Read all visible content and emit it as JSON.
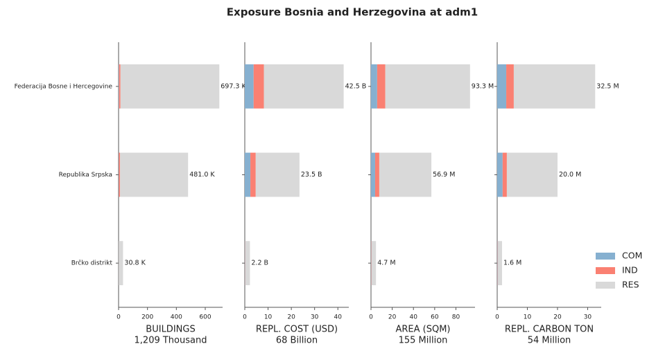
{
  "title": "Exposure Bosnia and Herzegovina at adm1",
  "chart_data": [
    {
      "type": "barh",
      "categories": [
        "Federacija Bosne i Hercegovine",
        "Republika Srpska",
        "Brčko distrikt"
      ],
      "series": [
        {
          "name": "COM",
          "color": "#86b0d0",
          "values": [
            3,
            2,
            0.3
          ]
        },
        {
          "name": "IND",
          "color": "#fa8072",
          "values": [
            10,
            8,
            0.5
          ]
        },
        {
          "name": "RES",
          "color": "#d9d9d9",
          "values": [
            684.3,
            471,
            30
          ]
        }
      ],
      "totals": [
        697.3,
        481.0,
        30.8
      ],
      "total_labels": [
        "697.3 K",
        "481.0 K",
        "30.8 K"
      ],
      "xlabel": "BUILDINGS",
      "xlabel_note": "1,209 Thousand",
      "xlim": [
        0,
        720
      ],
      "xticks": [
        0,
        200,
        400,
        600
      ],
      "legend": "lower right"
    },
    {
      "type": "barh",
      "series": [
        {
          "values": [
            3.8,
            2.4,
            0.1
          ]
        },
        {
          "values": [
            4.4,
            2.3,
            0.1
          ]
        },
        {
          "values": [
            34.3,
            18.8,
            2.0
          ]
        }
      ],
      "totals": [
        42.5,
        23.5,
        2.2
      ],
      "total_labels": [
        "42.5 B",
        "23.5 B",
        "2.2 B"
      ],
      "xlabel": "REPL. COST (USD)",
      "xlabel_note": "68 Billion",
      "xlim": [
        0,
        44.7
      ],
      "xticks": [
        0,
        10,
        20,
        30,
        40
      ]
    },
    {
      "type": "barh",
      "series": [
        {
          "values": [
            5.8,
            3.9,
            0.2
          ]
        },
        {
          "values": [
            7.7,
            3.9,
            0.3
          ]
        },
        {
          "values": [
            79.8,
            49.1,
            4.2
          ]
        }
      ],
      "totals": [
        93.3,
        56.9,
        4.7
      ],
      "total_labels": [
        "93.3 M",
        "56.9 M",
        "4.7 M"
      ],
      "xlabel": "AREA (SQM)",
      "xlabel_note": "155 Million",
      "xlim": [
        0,
        98
      ],
      "xticks": [
        0,
        20,
        40,
        60,
        80
      ]
    },
    {
      "type": "barh",
      "series": [
        {
          "values": [
            3.0,
            1.8,
            0.1
          ]
        },
        {
          "values": [
            2.5,
            1.4,
            0.1
          ]
        },
        {
          "values": [
            27.0,
            16.8,
            1.4
          ]
        }
      ],
      "totals": [
        32.5,
        20.0,
        1.6
      ],
      "total_labels": [
        "32.5 M",
        "20.0 M",
        "1.6 M"
      ],
      "xlabel": "REPL. CARBON TON",
      "xlabel_note": "54 Million",
      "xlim": [
        0,
        34.5
      ],
      "xticks": [
        0,
        10,
        20,
        30
      ]
    }
  ]
}
